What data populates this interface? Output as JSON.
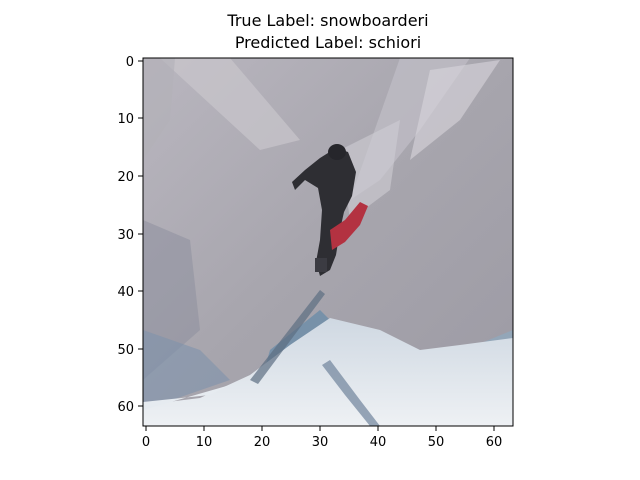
{
  "figure": {
    "true_label": "True Label: snowboarderi",
    "predicted_label": "Predicted Label: schiori"
  },
  "image": {
    "subject": "photo-of-snowboarder-mid-jump",
    "palette": {
      "sky": "#a8a6ae",
      "sky_light": "#c4c2c8",
      "snow": "#dfe4ea",
      "snow_shadow": "#9fb7c8",
      "rider": "#2f2f34",
      "board": "#b5303e",
      "rock": "#7a8aa0"
    }
  },
  "axes": {
    "x_ticks": [
      "0",
      "10",
      "20",
      "30",
      "40",
      "50",
      "60"
    ],
    "y_ticks": [
      "0",
      "10",
      "20",
      "30",
      "40",
      "50",
      "60"
    ]
  }
}
